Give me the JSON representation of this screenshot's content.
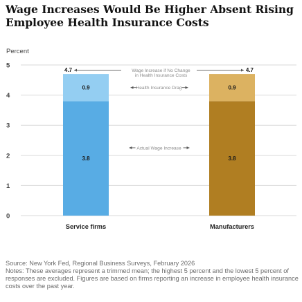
{
  "chart_data": {
    "type": "bar",
    "stacked": true,
    "title": "Wage Increases Would Be Higher Absent Rising Employee Health Insurance Costs",
    "ylabel": "Percent",
    "ylim": [
      0,
      5
    ],
    "yticks": [
      0,
      1,
      2,
      3,
      4,
      5
    ],
    "grid": true,
    "categories": [
      "Service firms",
      "Manufacturers"
    ],
    "series": [
      {
        "name": "Actual Wage Increase",
        "values": [
          3.8,
          3.8
        ],
        "colors": [
          "#58ace4",
          "#b07e22"
        ]
      },
      {
        "name": "Health Insurance Drag",
        "values": [
          0.9,
          0.9
        ],
        "colors": [
          "#94cef2",
          "#dcb261"
        ]
      }
    ],
    "totals": {
      "values": [
        4.7,
        4.7
      ],
      "label": "Wage Increase if No Change in Health Insurance Costs"
    },
    "value_labels": {
      "actual": [
        "3.8",
        "3.8"
      ],
      "drag": [
        "0.9",
        "0.9"
      ],
      "totals": [
        "4.7",
        "4.7"
      ]
    },
    "annotations": {
      "total_line1": "Wage Increase if No Change",
      "total_line2": "in Health Insurance Costs",
      "drag": "Health Insurance Drag",
      "actual": "Actual Wage Increase"
    }
  },
  "footer": {
    "source": "Source: New York Fed, Regional Business Surveys, February 2026",
    "notes": "Notes: These averages represent a trimmed mean; the highest 5 percent and the lowest 5 percent of responses are excluded. Figures are based on firms reporting an increase in employee health insurance costs over the past year."
  },
  "colors": {
    "axis_text": "#444444",
    "grid": "#d9d9d9",
    "annotation_text": "#8a8a8a",
    "arrow": "#555555"
  }
}
